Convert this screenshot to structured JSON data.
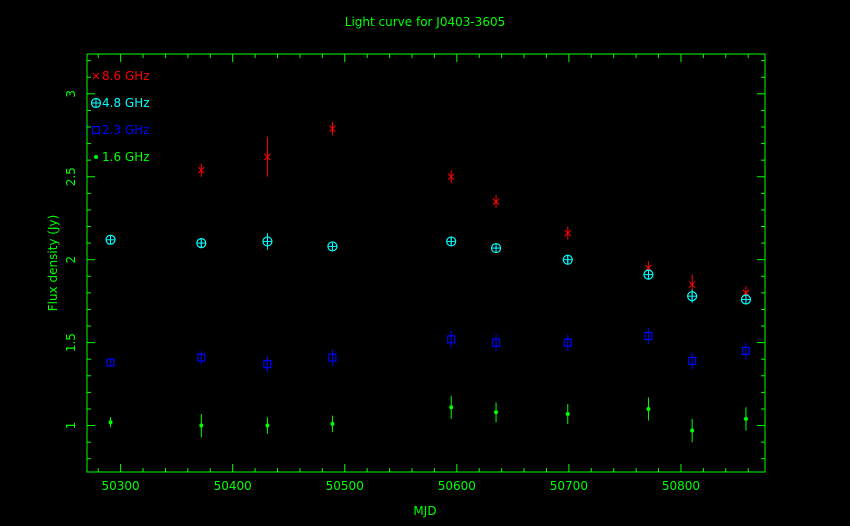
{
  "chart_data": {
    "type": "scatter",
    "title": "Light curve for J0403-3605",
    "xlabel": "MJD",
    "ylabel": "Flux density (Jy)",
    "xlim": [
      50270,
      50875
    ],
    "ylim": [
      0.72,
      3.24
    ],
    "xticks": [
      50300,
      50400,
      50500,
      50600,
      50700,
      50800
    ],
    "yticks": [
      1,
      1.5,
      2,
      2.5,
      3
    ],
    "xtick_labels": [
      "50300",
      "50400",
      "50500",
      "50600",
      "50700",
      "50800"
    ],
    "ytick_labels": [
      "1",
      "1.5",
      "2",
      "2.5",
      "3"
    ],
    "grid": false,
    "legend_position": "top-left",
    "colors": {
      "background": "#000000",
      "frame": "#00ff00",
      "title": "#00ff00",
      "s86": "#ff0000",
      "s48": "#00ffff",
      "s23": "#0000ff",
      "s16": "#00ff00"
    },
    "series": [
      {
        "name": "8.6 GHz",
        "marker": "cross",
        "color_key": "s86",
        "points": [
          {
            "x": 50372,
            "y": 2.54,
            "err": 0.04
          },
          {
            "x": 50431,
            "y": 2.62,
            "err": 0.12
          },
          {
            "x": 50489,
            "y": 2.79,
            "err": 0.04
          },
          {
            "x": 50595,
            "y": 2.5,
            "err": 0.04
          },
          {
            "x": 50635,
            "y": 2.35,
            "err": 0.04
          },
          {
            "x": 50699,
            "y": 2.16,
            "err": 0.04
          },
          {
            "x": 50771,
            "y": 1.95,
            "err": 0.04
          },
          {
            "x": 50810,
            "y": 1.85,
            "err": 0.06
          },
          {
            "x": 50858,
            "y": 1.8,
            "err": 0.04
          }
        ]
      },
      {
        "name": "4.8 GHz",
        "marker": "circle-plus",
        "color_key": "s48",
        "points": [
          {
            "x": 50291,
            "y": 2.12,
            "err": 0.02
          },
          {
            "x": 50372,
            "y": 2.1,
            "err": 0.03
          },
          {
            "x": 50431,
            "y": 2.11,
            "err": 0.05
          },
          {
            "x": 50489,
            "y": 2.08,
            "err": 0.02
          },
          {
            "x": 50595,
            "y": 2.11,
            "err": 0.03
          },
          {
            "x": 50635,
            "y": 2.07,
            "err": 0.03
          },
          {
            "x": 50699,
            "y": 2.0,
            "err": 0.03
          },
          {
            "x": 50771,
            "y": 1.91,
            "err": 0.03
          },
          {
            "x": 50810,
            "y": 1.78,
            "err": 0.04
          },
          {
            "x": 50858,
            "y": 1.76,
            "err": 0.03
          }
        ]
      },
      {
        "name": "2.3 GHz",
        "marker": "square",
        "color_key": "s23",
        "points": [
          {
            "x": 50291,
            "y": 1.38,
            "err": 0.02
          },
          {
            "x": 50372,
            "y": 1.41,
            "err": 0.04
          },
          {
            "x": 50431,
            "y": 1.37,
            "err": 0.05
          },
          {
            "x": 50489,
            "y": 1.41,
            "err": 0.05
          },
          {
            "x": 50595,
            "y": 1.52,
            "err": 0.05
          },
          {
            "x": 50635,
            "y": 1.5,
            "err": 0.05
          },
          {
            "x": 50699,
            "y": 1.5,
            "err": 0.05
          },
          {
            "x": 50771,
            "y": 1.54,
            "err": 0.05
          },
          {
            "x": 50810,
            "y": 1.39,
            "err": 0.05
          },
          {
            "x": 50858,
            "y": 1.45,
            "err": 0.05
          }
        ]
      },
      {
        "name": "1.6 GHz",
        "marker": "dot",
        "color_key": "s16",
        "points": [
          {
            "x": 50291,
            "y": 1.02,
            "err": 0.03
          },
          {
            "x": 50372,
            "y": 1.0,
            "err": 0.07
          },
          {
            "x": 50431,
            "y": 1.0,
            "err": 0.05
          },
          {
            "x": 50489,
            "y": 1.01,
            "err": 0.05
          },
          {
            "x": 50595,
            "y": 1.11,
            "err": 0.07
          },
          {
            "x": 50635,
            "y": 1.08,
            "err": 0.06
          },
          {
            "x": 50699,
            "y": 1.07,
            "err": 0.06
          },
          {
            "x": 50771,
            "y": 1.1,
            "err": 0.07
          },
          {
            "x": 50810,
            "y": 0.97,
            "err": 0.07
          },
          {
            "x": 50858,
            "y": 1.04,
            "err": 0.07
          }
        ]
      }
    ]
  }
}
